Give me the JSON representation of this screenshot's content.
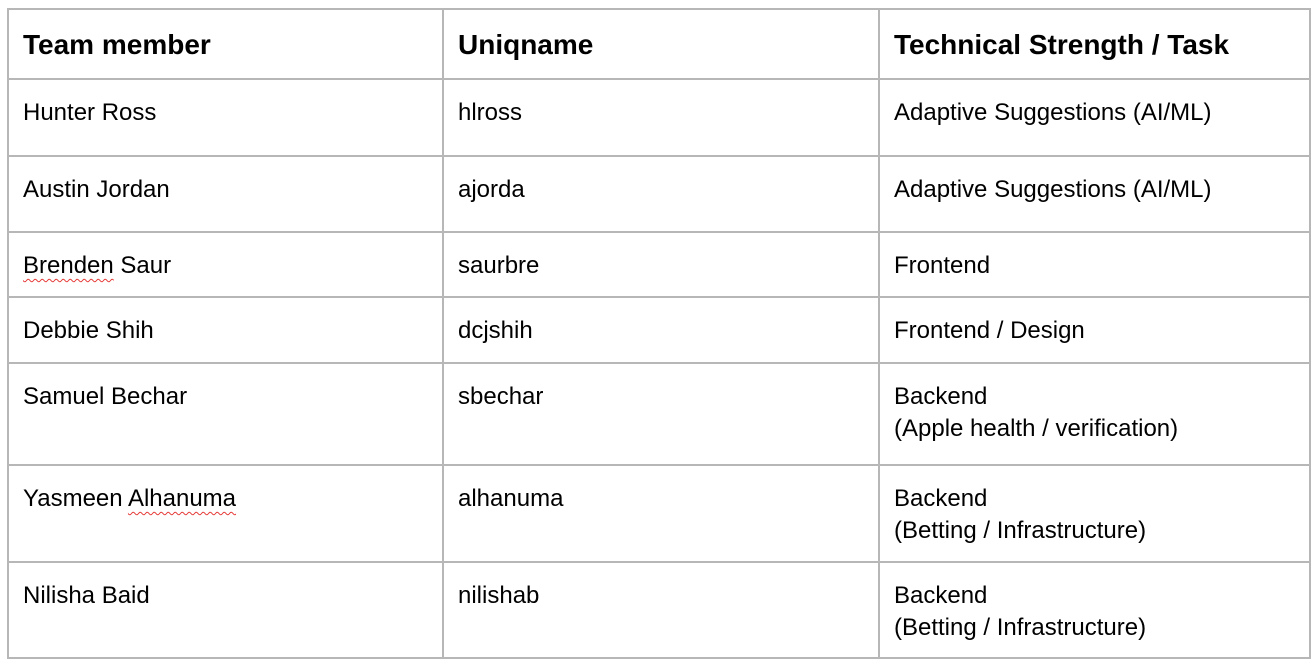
{
  "table": {
    "headers": [
      "Team member",
      "Uniqname",
      "Technical Strength / Task"
    ],
    "rows": [
      {
        "name_parts": [
          "Hunter Ross"
        ],
        "uniqname": "hlross",
        "task_lines": [
          "Adaptive Suggestions (AI/ML)"
        ]
      },
      {
        "name_parts": [
          "Austin Jordan"
        ],
        "uniqname": "ajorda",
        "task_lines": [
          "Adaptive Suggestions (AI/ML)"
        ]
      },
      {
        "name_parts": [
          "Brenden",
          " Saur"
        ],
        "uniqname": "saurbre",
        "task_lines": [
          "Frontend"
        ]
      },
      {
        "name_parts": [
          "Debbie Shih"
        ],
        "uniqname": "dcjshih",
        "task_lines": [
          "Frontend / Design"
        ]
      },
      {
        "name_parts": [
          "Samuel Bechar"
        ],
        "uniqname": "sbechar",
        "task_lines": [
          "Backend",
          "(Apple health / verification)"
        ]
      },
      {
        "name_parts": [
          "Yasmeen ",
          "Alhanuma"
        ],
        "uniqname": "alhanuma",
        "task_lines": [
          "Backend",
          "(Betting / Infrastructure)"
        ]
      },
      {
        "name_parts": [
          "Nilisha Baid"
        ],
        "uniqname": "nilishab",
        "task_lines": [
          "Backend",
          "(Betting / Infrastructure)"
        ]
      }
    ]
  },
  "colors": {
    "border": "#b7b7b7",
    "spellcheck_underline": "#e53935",
    "text": "#000000"
  }
}
